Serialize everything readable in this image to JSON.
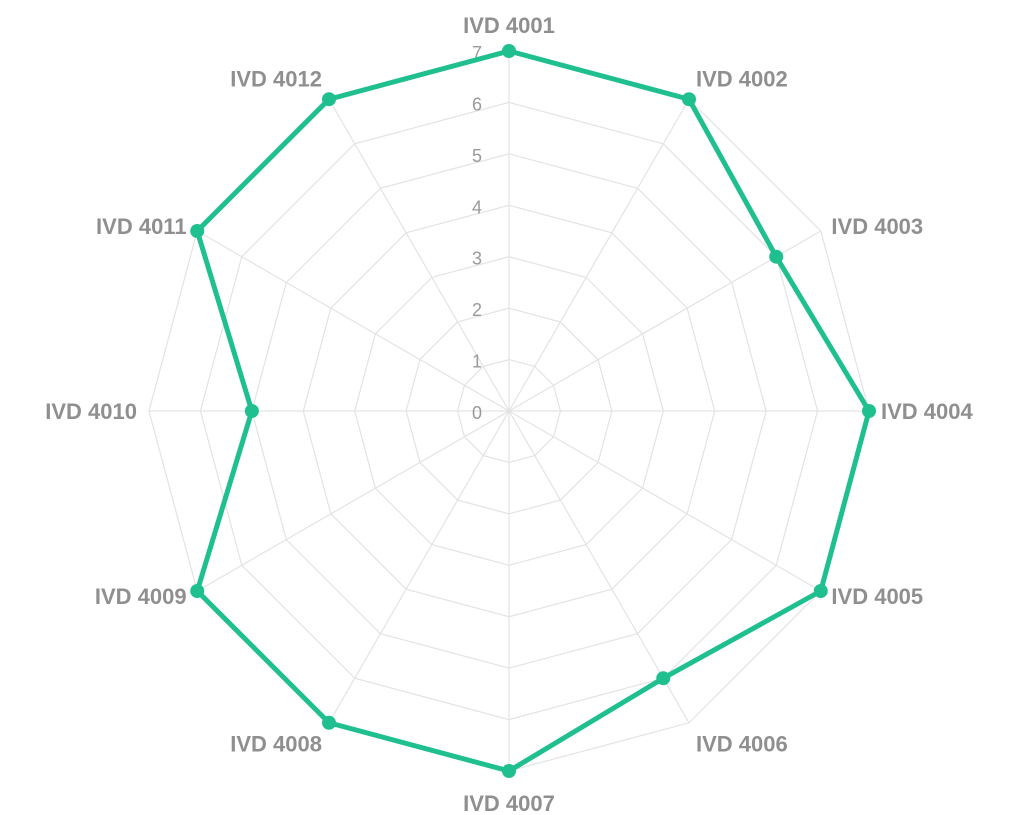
{
  "chart_data": {
    "type": "radar",
    "categories": [
      "IVD 4001",
      "IVD 4002",
      "IVD 4003",
      "IVD 4004",
      "IVD 4005",
      "IVD 4006",
      "IVD 4007",
      "IVD 4008",
      "IVD 4009",
      "IVD 4010",
      "IVD 4011",
      "IVD 4012"
    ],
    "series": [
      {
        "values": [
          7,
          7,
          6,
          7,
          7,
          6,
          7,
          7,
          7,
          5,
          7,
          7
        ],
        "color": "#1fbf8f"
      }
    ],
    "rlim": [
      0,
      7
    ],
    "ticks": [
      "0",
      "1",
      "2",
      "3",
      "4",
      "5",
      "6",
      "7"
    ],
    "grid": true,
    "legend": "none"
  }
}
